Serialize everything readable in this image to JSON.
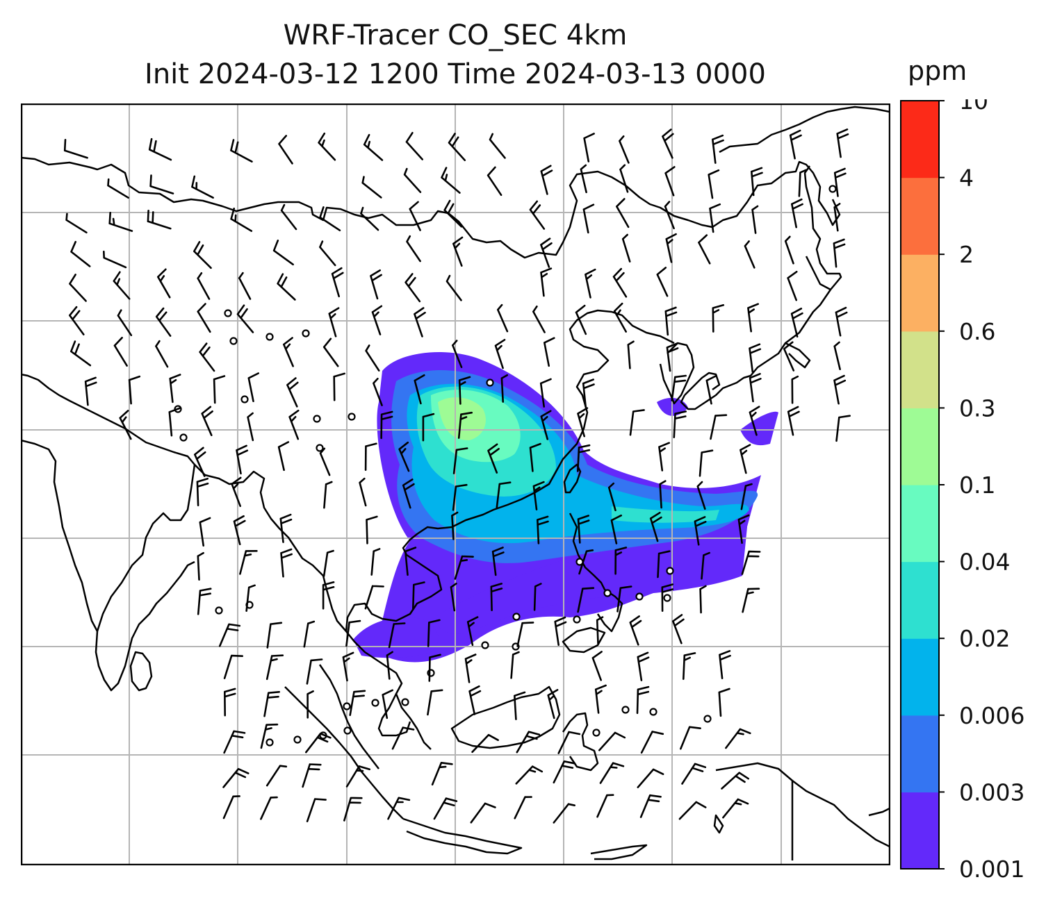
{
  "title": {
    "line1": "WRF-Tracer CO_SEC 4km",
    "line2": "Init 2024-03-12 1200 Time 2024-03-13 0000"
  },
  "colorbar": {
    "units": "ppm",
    "levels": [
      "0.001",
      "0.003",
      "0.006",
      "0.02",
      "0.04",
      "0.1",
      "0.3",
      "0.6",
      "2",
      "4",
      "10"
    ],
    "colors": [
      "#6329fa",
      "#3475f2",
      "#02b3ec",
      "#2ee0d0",
      "#68fbc0",
      "#9efb95",
      "#d2e18a",
      "#fcb062",
      "#fc6f3d",
      "#fc2a18"
    ]
  },
  "plume_colors": {
    "edge": "#6329fa",
    "low": "#3475f2",
    "mid": "#02b3ec",
    "midhigh": "#2ee0d0",
    "high": "#68fbc0",
    "core": "#9efb95"
  },
  "map": {
    "grid_color": "#b5b5b5",
    "coastline_color": "#000000",
    "barb_color": "#000000"
  }
}
